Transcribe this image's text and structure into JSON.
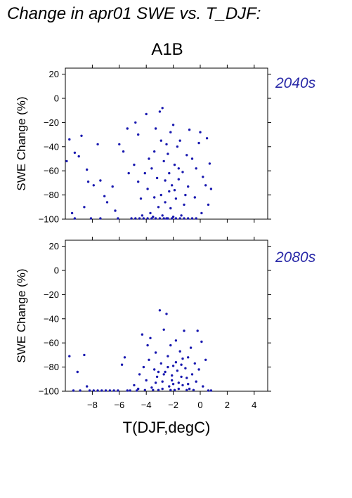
{
  "figure": {
    "title": "Change in apr01 SWE vs. T_DJF:",
    "scenario": "A1B",
    "xlabel": "T(DJF,degC)",
    "ylabel": "SWE Change (%)"
  },
  "colors": {
    "points": "#1a1ab0",
    "period_text": "#2a2aa8",
    "axes": "#000000"
  },
  "chart_data": [
    {
      "type": "scatter",
      "period": "2040s",
      "xlim": [
        -10,
        5
      ],
      "ylim": [
        -100,
        25
      ],
      "xticks": [
        -8,
        -6,
        -4,
        -2,
        0,
        2,
        4
      ],
      "yticks": [
        20,
        0,
        -20,
        -40,
        -60,
        -80,
        -100
      ],
      "ytick_labels": [
        "20",
        "0",
        "−20",
        "−40",
        "−60",
        "−80",
        "−100"
      ],
      "xtick_labels_shown": false,
      "points": [
        [
          -9.9,
          -52
        ],
        [
          -9.7,
          -34
        ],
        [
          -9.5,
          -95
        ],
        [
          -9.3,
          -45
        ],
        [
          -9.3,
          -100
        ],
        [
          -9.0,
          -48
        ],
        [
          -8.8,
          -31
        ],
        [
          -8.6,
          -90
        ],
        [
          -8.4,
          -59
        ],
        [
          -8.3,
          -69
        ],
        [
          -8.1,
          -100
        ],
        [
          -7.9,
          -72
        ],
        [
          -7.6,
          -38
        ],
        [
          -7.4,
          -68
        ],
        [
          -7.4,
          -100
        ],
        [
          -7.1,
          -81
        ],
        [
          -6.9,
          -86
        ],
        [
          -6.5,
          -73
        ],
        [
          -6.3,
          -93
        ],
        [
          -6.1,
          -100
        ],
        [
          -6.0,
          -38
        ],
        [
          -5.7,
          -44
        ],
        [
          -5.4,
          -25
        ],
        [
          -5.3,
          -62
        ],
        [
          -5.1,
          -100
        ],
        [
          -4.9,
          -55
        ],
        [
          -4.8,
          -20
        ],
        [
          -4.6,
          -30
        ],
        [
          -4.6,
          -69
        ],
        [
          -4.4,
          -83
        ],
        [
          -4.1,
          -62
        ],
        [
          -4.0,
          -13
        ],
        [
          -3.9,
          -75
        ],
        [
          -3.7,
          -95
        ],
        [
          -3.4,
          -44
        ],
        [
          -3.3,
          -25
        ],
        [
          -3.2,
          -66
        ],
        [
          -3.0,
          -11
        ],
        [
          -2.9,
          -35
        ],
        [
          -2.9,
          -80
        ],
        [
          -2.8,
          -8
        ],
        [
          -2.7,
          -52
        ],
        [
          -2.6,
          -86
        ],
        [
          -2.5,
          -100
        ],
        [
          -2.4,
          -46
        ],
        [
          -2.3,
          -62
        ],
        [
          -2.2,
          -28
        ],
        [
          -2.2,
          -91
        ],
        [
          -2.1,
          -72
        ],
        [
          -2.0,
          -22
        ],
        [
          -1.9,
          -55
        ],
        [
          -1.8,
          -83
        ],
        [
          -1.7,
          -40
        ],
        [
          -1.6,
          -67
        ],
        [
          -1.5,
          -35
        ],
        [
          -1.5,
          -100
        ],
        [
          -1.3,
          -61
        ],
        [
          -1.2,
          -88
        ],
        [
          -1.0,
          -47
        ],
        [
          -0.9,
          -73
        ],
        [
          -0.8,
          -26
        ],
        [
          -0.6,
          -50
        ],
        [
          -0.4,
          -82
        ],
        [
          -0.3,
          -58
        ],
        [
          -0.1,
          -37
        ],
        [
          0.0,
          -28
        ],
        [
          0.1,
          -95
        ],
        [
          0.2,
          -65
        ],
        [
          0.4,
          -72
        ],
        [
          0.5,
          -33
        ],
        [
          0.6,
          -88
        ],
        [
          0.7,
          -54
        ],
        [
          0.8,
          -75
        ],
        [
          -4.8,
          -100
        ],
        [
          -4.5,
          -100
        ],
        [
          -4.2,
          -100
        ],
        [
          -3.9,
          -100
        ],
        [
          -3.6,
          -100
        ],
        [
          -3.3,
          -100
        ],
        [
          -3.0,
          -100
        ],
        [
          -2.7,
          -100
        ],
        [
          -2.4,
          -100
        ],
        [
          -2.1,
          -100
        ],
        [
          -1.8,
          -100
        ],
        [
          -1.2,
          -100
        ],
        [
          -0.9,
          -100
        ],
        [
          -0.6,
          -100
        ],
        [
          -0.3,
          -100
        ],
        [
          -3.5,
          -98
        ],
        [
          -2.8,
          -97
        ],
        [
          -2.0,
          -98
        ],
        [
          -1.4,
          -97
        ],
        [
          -4.3,
          -97
        ],
        [
          -3.8,
          -50
        ],
        [
          -3.6,
          -58
        ],
        [
          -2.5,
          -38
        ],
        [
          -1.9,
          -76
        ],
        [
          -1.1,
          -80
        ],
        [
          -3.1,
          -90
        ],
        [
          -2.3,
          -77
        ],
        [
          -1.6,
          -58
        ],
        [
          -2.6,
          -68
        ],
        [
          -3.4,
          -82
        ]
      ]
    },
    {
      "type": "scatter",
      "period": "2080s",
      "xlim": [
        -10,
        5
      ],
      "ylim": [
        -100,
        25
      ],
      "xticks": [
        -8,
        -6,
        -4,
        -2,
        0,
        2,
        4
      ],
      "xtick_labels": [
        "−8",
        "−6",
        "−4",
        "−2",
        "0",
        "2",
        "4"
      ],
      "yticks": [
        20,
        0,
        -20,
        -40,
        -60,
        -80,
        -100
      ],
      "ytick_labels": [
        "20",
        "0",
        "−20",
        "−40",
        "−60",
        "−80",
        "−100"
      ],
      "points": [
        [
          -9.7,
          -71
        ],
        [
          -9.4,
          -100
        ],
        [
          -9.1,
          -84
        ],
        [
          -8.9,
          -100
        ],
        [
          -8.6,
          -70
        ],
        [
          -8.4,
          -96
        ],
        [
          -8.2,
          -100
        ],
        [
          -7.9,
          -100
        ],
        [
          -7.6,
          -100
        ],
        [
          -7.3,
          -100
        ],
        [
          -7.0,
          -100
        ],
        [
          -6.7,
          -100
        ],
        [
          -6.4,
          -100
        ],
        [
          -6.1,
          -100
        ],
        [
          -5.8,
          -78
        ],
        [
          -5.6,
          -72
        ],
        [
          -5.4,
          -100
        ],
        [
          -5.2,
          -100
        ],
        [
          -4.9,
          -95
        ],
        [
          -4.7,
          -100
        ],
        [
          -4.5,
          -86
        ],
        [
          -4.3,
          -53
        ],
        [
          -4.2,
          -80
        ],
        [
          -4.0,
          -91
        ],
        [
          -3.8,
          -74
        ],
        [
          -3.7,
          -56
        ],
        [
          -3.6,
          -97
        ],
        [
          -3.4,
          -82
        ],
        [
          -3.3,
          -68
        ],
        [
          -3.2,
          -88
        ],
        [
          -3.1,
          -99
        ],
        [
          -3.0,
          -33
        ],
        [
          -2.9,
          -77
        ],
        [
          -2.8,
          -92
        ],
        [
          -2.7,
          -49
        ],
        [
          -2.6,
          -84
        ],
        [
          -2.5,
          -36
        ],
        [
          -2.4,
          -71
        ],
        [
          -2.3,
          -96
        ],
        [
          -2.2,
          -62
        ],
        [
          -2.1,
          -87
        ],
        [
          -2.0,
          -79
        ],
        [
          -1.9,
          -99
        ],
        [
          -1.8,
          -58
        ],
        [
          -1.7,
          -83
        ],
        [
          -1.6,
          -93
        ],
        [
          -1.5,
          -67
        ],
        [
          -1.4,
          -78
        ],
        [
          -1.3,
          -95
        ],
        [
          -1.2,
          -50
        ],
        [
          -1.1,
          -81
        ],
        [
          -1.0,
          -89
        ],
        [
          -0.9,
          -72
        ],
        [
          -0.8,
          -98
        ],
        [
          -0.7,
          -64
        ],
        [
          -0.6,
          -86
        ],
        [
          -0.4,
          -77
        ],
        [
          -0.3,
          -92
        ],
        [
          -0.2,
          -50
        ],
        [
          -0.1,
          -82
        ],
        [
          0.1,
          -59
        ],
        [
          0.2,
          -96
        ],
        [
          0.4,
          -74
        ],
        [
          0.6,
          -100
        ],
        [
          0.8,
          -100
        ],
        [
          -4.6,
          -98
        ],
        [
          -4.1,
          -99
        ],
        [
          -3.5,
          -99
        ],
        [
          -2.8,
          -98
        ],
        [
          -2.2,
          -99
        ],
        [
          -1.6,
          -98
        ],
        [
          -1.0,
          -99
        ],
        [
          -0.5,
          -99
        ],
        [
          -3.9,
          -62
        ],
        [
          -3.3,
          -93
        ],
        [
          -2.7,
          -86
        ],
        [
          -2.1,
          -91
        ],
        [
          -1.4,
          -88
        ],
        [
          -0.9,
          -94
        ],
        [
          -2.4,
          -80
        ],
        [
          -1.8,
          -76
        ],
        [
          -3.1,
          -84
        ],
        [
          -2.0,
          -94
        ],
        [
          -1.3,
          -73
        ]
      ]
    }
  ]
}
